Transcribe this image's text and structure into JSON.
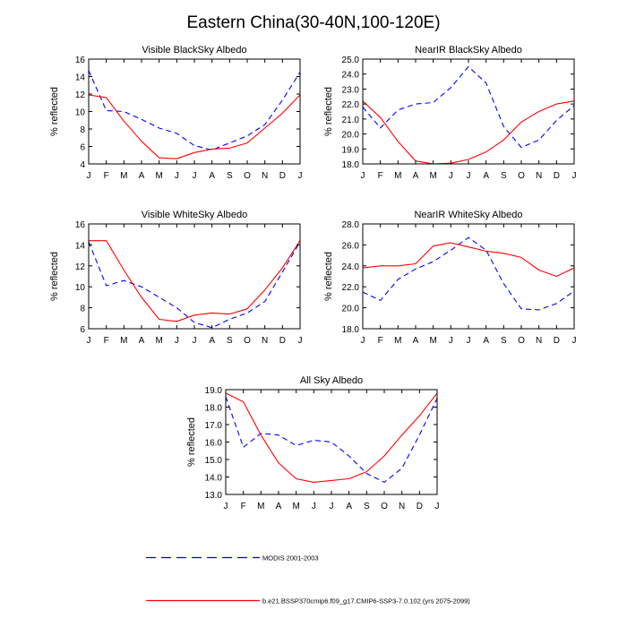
{
  "page_title": "Eastern China(30-40N,100-120E)",
  "colors": {
    "model": "#ff0000",
    "obs": "#0000ff",
    "axis": "#000000"
  },
  "legend": {
    "obs_label": "MODIS 2001-2003",
    "model_label": "b.e21.BSSP370cmip6.f09_g17.CMIP6-SSP3-7.0.102 (yrs 2075-2099)"
  },
  "chart_data": [
    {
      "type": "line",
      "title": "Visible BlackSky Albedo",
      "ylabel": "% reflected",
      "categories": [
        "J",
        "F",
        "M",
        "A",
        "M",
        "J",
        "J",
        "A",
        "S",
        "O",
        "N",
        "D",
        "J"
      ],
      "ylim": [
        4,
        16
      ],
      "yticks": [
        4,
        6,
        8,
        10,
        12,
        14,
        16
      ],
      "ytick_labels": [
        "4",
        "6",
        "8",
        "10",
        "12",
        "14",
        "16"
      ],
      "series": [
        {
          "name": "MODIS 2001-2003",
          "values": [
            14.7,
            10.1,
            10.0,
            9.1,
            8.1,
            7.5,
            6.1,
            5.6,
            6.4,
            7.2,
            8.5,
            11.3,
            14.5
          ]
        },
        {
          "name": "b.e21.BSSP370cmip6.f09_g17.CMIP6-SSP3-7.0.102 (yrs 2075-2099)",
          "values": [
            11.9,
            11.6,
            8.9,
            6.6,
            4.7,
            4.6,
            5.3,
            5.7,
            5.8,
            6.4,
            8.1,
            9.8,
            11.9
          ]
        }
      ]
    },
    {
      "type": "line",
      "title": "NearIR BlackSky Albedo",
      "ylabel": "% reflected",
      "categories": [
        "J",
        "F",
        "M",
        "A",
        "M",
        "J",
        "J",
        "A",
        "S",
        "O",
        "N",
        "D",
        "J"
      ],
      "ylim": [
        18,
        25
      ],
      "yticks": [
        18,
        19,
        20,
        21,
        22,
        23,
        24,
        25
      ],
      "ytick_labels": [
        "18.0",
        "19.0",
        "20.0",
        "21.0",
        "22.0",
        "23.0",
        "24.0",
        "25.0"
      ],
      "series": [
        {
          "name": "MODIS 2001-2003",
          "values": [
            21.8,
            20.4,
            21.6,
            22.0,
            22.1,
            23.1,
            24.5,
            23.4,
            20.5,
            19.1,
            19.6,
            20.9,
            21.9
          ]
        },
        {
          "name": "b.e21.BSSP370cmip6.f09_g17.CMIP6-SSP3-7.0.102 (yrs 2075-2099)",
          "values": [
            22.2,
            21.1,
            19.5,
            18.2,
            18.0,
            18.05,
            18.3,
            18.8,
            19.6,
            20.8,
            21.5,
            22.0,
            22.2
          ]
        }
      ]
    },
    {
      "type": "line",
      "title": "Visible WhiteSky Albedo",
      "ylabel": "% reflected",
      "categories": [
        "J",
        "F",
        "M",
        "A",
        "M",
        "J",
        "J",
        "A",
        "S",
        "O",
        "N",
        "D",
        "J"
      ],
      "ylim": [
        6,
        16
      ],
      "yticks": [
        6,
        8,
        10,
        12,
        14,
        16
      ],
      "ytick_labels": [
        "6",
        "8",
        "10",
        "12",
        "14",
        "16"
      ],
      "series": [
        {
          "name": "MODIS 2001-2003",
          "values": [
            14.3,
            10.1,
            10.6,
            10.0,
            9.0,
            8.0,
            6.6,
            6.1,
            6.9,
            7.5,
            8.6,
            11.4,
            14.3
          ]
        },
        {
          "name": "b.e21.BSSP370cmip6.f09_g17.CMIP6-SSP3-7.0.102 (yrs 2075-2099)",
          "values": [
            14.4,
            14.4,
            11.6,
            9.0,
            6.9,
            6.7,
            7.3,
            7.5,
            7.4,
            7.9,
            9.7,
            11.8,
            14.4
          ]
        }
      ]
    },
    {
      "type": "line",
      "title": "NearIR WhiteSky Albedo",
      "ylabel": "% reflected",
      "categories": [
        "J",
        "F",
        "M",
        "A",
        "M",
        "J",
        "J",
        "A",
        "S",
        "O",
        "N",
        "D",
        "J"
      ],
      "ylim": [
        18,
        28
      ],
      "yticks": [
        18,
        20,
        22,
        24,
        26,
        28
      ],
      "ytick_labels": [
        "18.0",
        "20.0",
        "22.0",
        "24.0",
        "26.0",
        "28.0"
      ],
      "series": [
        {
          "name": "MODIS 2001-2003",
          "values": [
            21.5,
            20.7,
            22.7,
            23.7,
            24.4,
            25.5,
            26.7,
            25.5,
            22.3,
            19.9,
            19.8,
            20.4,
            21.6
          ]
        },
        {
          "name": "b.e21.BSSP370cmip6.f09_g17.CMIP6-SSP3-7.0.102 (yrs 2075-2099)",
          "values": [
            23.8,
            24.0,
            24.0,
            24.2,
            25.9,
            26.2,
            25.8,
            25.4,
            25.2,
            24.8,
            23.6,
            23.0,
            23.8
          ]
        }
      ]
    },
    {
      "type": "line",
      "title": "All Sky Albedo",
      "ylabel": "% reflected",
      "categories": [
        "J",
        "F",
        "M",
        "A",
        "M",
        "J",
        "J",
        "A",
        "S",
        "O",
        "N",
        "D",
        "J"
      ],
      "ylim": [
        13,
        19
      ],
      "yticks": [
        13,
        14,
        15,
        16,
        17,
        18,
        19
      ],
      "ytick_labels": [
        "13.0",
        "14.0",
        "15.0",
        "16.0",
        "17.0",
        "18.0",
        "19.0"
      ],
      "series": [
        {
          "name": "MODIS 2001-2003",
          "values": [
            18.6,
            15.7,
            16.5,
            16.4,
            15.8,
            16.1,
            16.0,
            15.2,
            14.2,
            13.7,
            14.5,
            16.4,
            18.5
          ]
        },
        {
          "name": "b.e21.BSSP370cmip6.f09_g17.CMIP6-SSP3-7.0.102 (yrs 2075-2099)",
          "values": [
            18.8,
            18.3,
            16.4,
            14.8,
            13.9,
            13.7,
            13.8,
            13.9,
            14.3,
            15.2,
            16.4,
            17.5,
            18.8
          ]
        }
      ]
    }
  ]
}
